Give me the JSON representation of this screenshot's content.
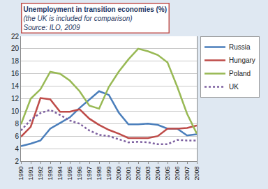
{
  "chart_data": {
    "type": "line",
    "title": "Unemployment in transition economies (%)",
    "subtitle": "(the UK is included for comparison)",
    "annotations": [
      "Source: ILO, 2009"
    ],
    "categories": [
      "1990",
      "1991",
      "1992",
      "1993",
      "1994",
      "1995",
      "1996",
      "1997",
      "1998",
      "1999",
      "2000",
      "2001",
      "2002",
      "2003",
      "2004",
      "2005",
      "2006",
      "2007",
      "2008"
    ],
    "series": [
      {
        "name": "Russia",
        "color": "#4a7ebb",
        "line_style": "solid",
        "values": [
          4.4,
          4.8,
          5.3,
          7.2,
          8.1,
          9.0,
          10.5,
          11.8,
          13.2,
          12.6,
          9.8,
          7.9,
          7.9,
          8.0,
          7.8,
          7.2,
          7.2,
          6.1,
          6.3
        ]
      },
      {
        "name": "Hungary",
        "color": "#be4b48",
        "line_style": "solid",
        "values": [
          5.9,
          7.5,
          12.1,
          11.9,
          9.9,
          9.9,
          10.3,
          8.8,
          7.8,
          7.0,
          6.4,
          5.7,
          5.7,
          5.7,
          6.0,
          7.2,
          7.2,
          7.3,
          7.7
        ]
      },
      {
        "name": "Poland",
        "color": "#98b954",
        "line_style": "solid",
        "values": [
          7.9,
          12.0,
          13.5,
          16.3,
          16.0,
          14.9,
          13.2,
          10.9,
          10.4,
          13.9,
          16.3,
          18.3,
          20.0,
          19.6,
          19.0,
          17.8,
          13.9,
          9.6,
          6.4
        ]
      },
      {
        "name": "UK",
        "color": "#7d60a0",
        "line_style": "dotted",
        "values": [
          6.9,
          8.6,
          9.7,
          10.2,
          9.4,
          8.5,
          8.0,
          6.9,
          6.2,
          6.0,
          5.5,
          5.0,
          5.1,
          5.0,
          4.7,
          4.7,
          5.4,
          5.3,
          5.3
        ]
      }
    ],
    "ylim": [
      2,
      22
    ],
    "yticks": [
      2,
      4,
      6,
      8,
      10,
      12,
      14,
      16,
      18,
      20,
      22
    ],
    "grid": true,
    "legend": "right"
  }
}
